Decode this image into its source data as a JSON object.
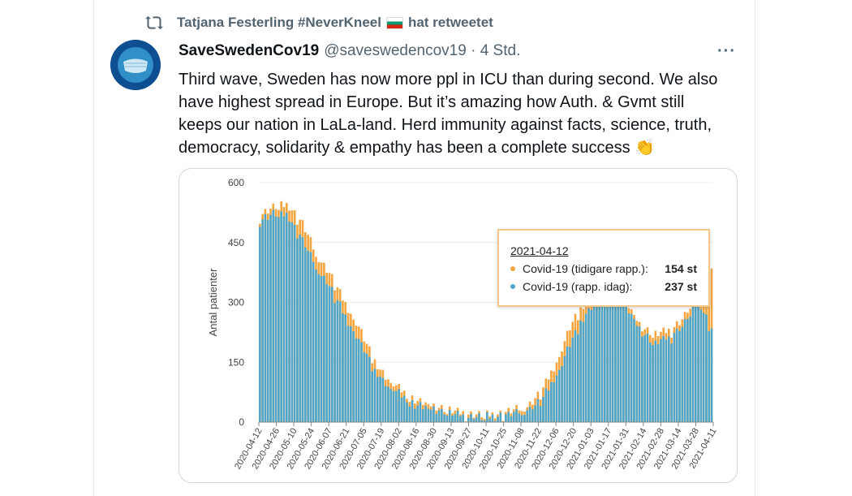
{
  "retweet": {
    "icon": "retweet-icon",
    "user": "Tatjana Festerling #NeverKneel",
    "flag": "bulgaria-flag-icon",
    "suffix": "hat retweetet"
  },
  "tweet": {
    "display_name": "SaveSwedenCov19",
    "handle": "@saveswedencov19 · 4 Std.",
    "more_icon": "more-icon",
    "more_label": "···",
    "text": "Third wave, Sweden has now more ppl in ICU than during second. We also have highest spread in Europe. But it’s amazing how Auth. & Gvmt still keeps our nation in LaLa-land. Herd immunity against facts, science, truth, democracy, solidarity & empathy has been a complete success 👏"
  },
  "colors": {
    "orange": "#f5a641",
    "blue": "#4fa6c8",
    "grid": "#e6e6e6"
  },
  "chart_data": {
    "type": "bar",
    "ylabel": "Antal patienter",
    "ylim": [
      0,
      600
    ],
    "yticks": [
      0,
      150,
      300,
      450,
      600
    ],
    "xticks": [
      "2020-04-12",
      "2020-04-26",
      "2020-05-10",
      "2020-05-24",
      "2020-06-07",
      "2020-06-21",
      "2020-07-05",
      "2020-07-19",
      "2020-08-02",
      "2020-08-16",
      "2020-08-30",
      "2020-09-13",
      "2020-09-27",
      "2020-10-11",
      "2020-10-25",
      "2020-11-08",
      "2020-11-22",
      "2020-12-06",
      "2020-12-20",
      "2021-01-03",
      "2021-01-17",
      "2021-01-31",
      "2021-02-14",
      "2021-02-28",
      "2021-03-14",
      "2021-03-28",
      "2021-04-11"
    ],
    "series": [
      {
        "name": "Covid-19 (tidigare rapp.)",
        "color": "#f5a641",
        "anchor_total": [
          520,
          540,
          545,
          500,
          420,
          370,
          300,
          240,
          160,
          110,
          80,
          55,
          45,
          35,
          25,
          20,
          18,
          22,
          30,
          40,
          80,
          150,
          240,
          300,
          330,
          345,
          300,
          240,
          220,
          230,
          260,
          330,
          385
        ]
      },
      {
        "name": "Covid-19 (rapp. idag)",
        "color": "#4fa6c8",
        "anchor_value": [
          510,
          525,
          520,
          460,
          390,
          340,
          270,
          210,
          140,
          95,
          70,
          45,
          38,
          30,
          20,
          16,
          15,
          18,
          24,
          32,
          60,
          120,
          200,
          270,
          315,
          330,
          290,
          230,
          200,
          215,
          245,
          310,
          237
        ]
      }
    ],
    "tooltip": {
      "date": "2021-04-12",
      "rows": [
        {
          "label": "Covid-19 (tidigare rapp.):",
          "value": "154 st",
          "color": "#f5a641"
        },
        {
          "label": "Covid-19 (rapp. idag):",
          "value": "237 st",
          "color": "#4fa6c8"
        }
      ]
    }
  }
}
